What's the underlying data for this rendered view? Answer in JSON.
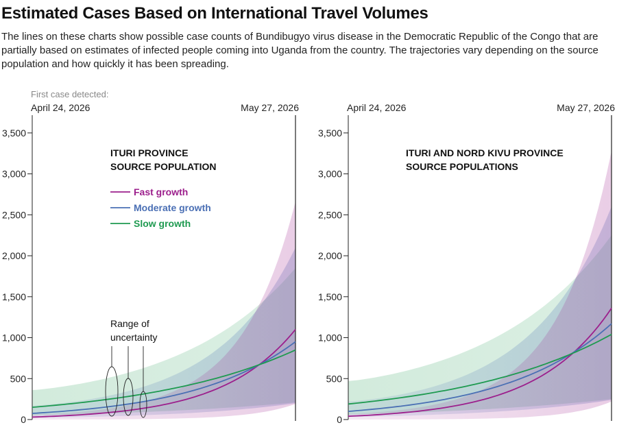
{
  "header": {
    "title": "Estimated Cases Based on International Travel Volumes",
    "subtitle": "The lines on these charts show possible case counts of Bundibugyo virus disease in the Democratic Republic of the Congo that are partially based on estimates of infected people coming into Uganda from the country. The trajectories vary depending on the source population and how quickly it has been spreading."
  },
  "colors": {
    "fast": "#9c1f8c",
    "moderate": "#4a6fb4",
    "slow": "#1e9a50",
    "axis": "#222222"
  },
  "chart_data": [
    {
      "type": "line",
      "title": "ITURI PROVINCE\nSOURCE POPULATION",
      "x_start_label": "April 24, 2026",
      "x_end_label": "May 27, 2026",
      "first_case_label": "First case detected:",
      "x_range": [
        "2026-04-24",
        "2026-05-27"
      ],
      "ylim": [
        0,
        3700
      ],
      "yticks": [
        0,
        500,
        1000,
        1500,
        2000,
        2500,
        3000,
        3500
      ],
      "legend": {
        "placement": "top-left",
        "entries": [
          "Fast growth",
          "Moderate growth",
          "Slow growth"
        ]
      },
      "annotation": "Range of\nuncertainty",
      "series": [
        {
          "name": "Fast growth",
          "key": "fast",
          "start": 30,
          "end": 1100,
          "band_low_start": 0,
          "band_low_end": 190,
          "band_high_start": 60,
          "band_high_end": 2660
        },
        {
          "name": "Moderate growth",
          "key": "moderate",
          "start": 75,
          "end": 950,
          "band_low_start": 20,
          "band_low_end": 200,
          "band_high_start": 170,
          "band_high_end": 2100
        },
        {
          "name": "Slow growth",
          "key": "slow",
          "start": 150,
          "end": 850,
          "band_low_start": 50,
          "band_low_end": 210,
          "band_high_start": 360,
          "band_high_end": 1850
        }
      ]
    },
    {
      "type": "line",
      "title": "ITURI AND NORD KIVU PROVINCE\nSOURCE POPULATIONS",
      "x_start_label": "April 24, 2026",
      "x_end_label": "May 27, 2026",
      "x_range": [
        "2026-04-24",
        "2026-05-27"
      ],
      "ylim": [
        0,
        3700
      ],
      "yticks": [
        0,
        500,
        1000,
        1500,
        2000,
        2500,
        3000,
        3500
      ],
      "series": [
        {
          "name": "Fast growth",
          "key": "fast",
          "start": 40,
          "end": 1360,
          "band_low_start": 0,
          "band_low_end": 220,
          "band_high_start": 70,
          "band_high_end": 3280
        },
        {
          "name": "Moderate growth",
          "key": "moderate",
          "start": 100,
          "end": 1170,
          "band_low_start": 30,
          "band_low_end": 240,
          "band_high_start": 220,
          "band_high_end": 2600
        },
        {
          "name": "Slow growth",
          "key": "slow",
          "start": 190,
          "end": 1040,
          "band_low_start": 60,
          "band_low_end": 250,
          "band_high_start": 470,
          "band_high_end": 2250
        }
      ]
    }
  ]
}
